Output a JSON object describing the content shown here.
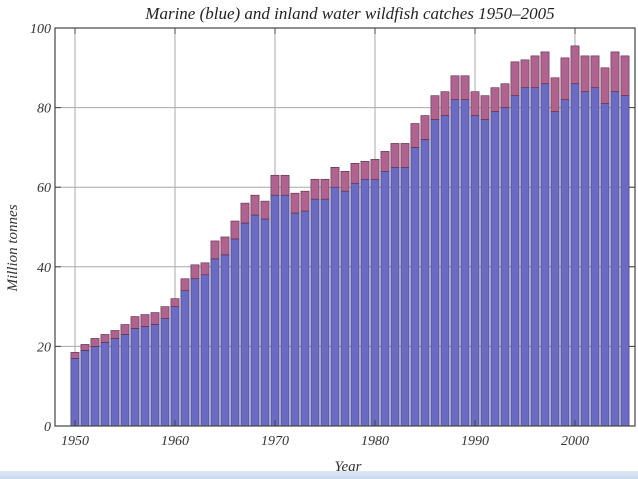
{
  "colors": {
    "marine": "#6b6bc4",
    "inland": "#b0638f"
  },
  "chart_data": {
    "type": "bar",
    "stacked": true,
    "title": "Marine (blue) and inland water wildfish catches 1950–2005",
    "xlabel": "Year",
    "ylabel": "Million tonnes",
    "xlim": [
      1948,
      2006
    ],
    "ylim": [
      0,
      100
    ],
    "xticks": [
      1950,
      1960,
      1970,
      1980,
      1990,
      2000
    ],
    "yticks": [
      0,
      20,
      40,
      60,
      80,
      100
    ],
    "grid": true,
    "x": [
      1950,
      1951,
      1952,
      1953,
      1954,
      1955,
      1956,
      1957,
      1958,
      1959,
      1960,
      1961,
      1962,
      1963,
      1964,
      1965,
      1966,
      1967,
      1968,
      1969,
      1970,
      1971,
      1972,
      1973,
      1974,
      1975,
      1976,
      1977,
      1978,
      1979,
      1980,
      1981,
      1982,
      1983,
      1984,
      1985,
      1986,
      1987,
      1988,
      1989,
      1990,
      1991,
      1992,
      1993,
      1994,
      1995,
      1996,
      1997,
      1998,
      1999,
      2000,
      2001,
      2002,
      2003,
      2004,
      2005
    ],
    "series": [
      {
        "values": [
          17,
          19,
          20,
          21,
          22,
          23,
          24.5,
          25,
          25.5,
          27,
          30,
          34,
          37,
          38,
          42,
          43,
          47,
          51,
          53,
          52,
          58,
          58,
          53.5,
          54,
          57,
          57,
          60,
          59,
          61,
          62,
          62,
          64,
          65,
          65,
          70,
          72,
          77,
          78,
          82,
          82,
          78,
          77,
          79,
          80,
          83,
          85,
          85,
          86,
          79,
          82,
          86,
          84,
          85,
          81,
          84,
          83
        ]
      },
      {
        "values": [
          1.5,
          1.5,
          2,
          2,
          2,
          2.5,
          3,
          3,
          3,
          3,
          2,
          3,
          3.5,
          3,
          4.5,
          4.5,
          4.5,
          5,
          5,
          4.5,
          5,
          5,
          5,
          5,
          5,
          5,
          5,
          5,
          5,
          4.5,
          5,
          5,
          6,
          6,
          6,
          6,
          6,
          6,
          6,
          6,
          6,
          6,
          6,
          6,
          8.5,
          7,
          8,
          8,
          8.5,
          10.5,
          9.5,
          9,
          8,
          9,
          10,
          10
        ]
      }
    ]
  }
}
